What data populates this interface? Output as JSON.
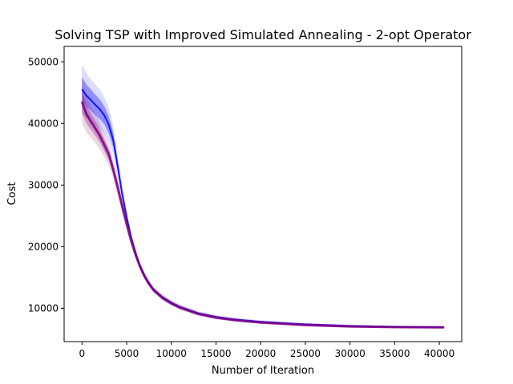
{
  "chart_data": {
    "type": "line",
    "title": "Solving TSP with Improved Simulated Annealing - 2-opt Operator",
    "xlabel": "Number of Iteration",
    "ylabel": "Cost",
    "xlim": [
      -2000,
      42500
    ],
    "ylim": [
      4600,
      52500
    ],
    "xticks": [
      0,
      5000,
      10000,
      15000,
      20000,
      25000,
      30000,
      35000,
      40000
    ],
    "yticks": [
      10000,
      20000,
      30000,
      40000,
      50000
    ],
    "grid": false,
    "legend": "none",
    "series": [
      {
        "color": "#0000ff",
        "spread_color": "#3b3bff",
        "x": [
          0,
          500,
          1000,
          1500,
          2000,
          2500,
          3000,
          3500,
          4000,
          4500,
          5000,
          5500,
          6000,
          6500,
          7000,
          7500,
          8000,
          9000,
          10000,
          11000,
          12000,
          13000,
          14000,
          15000,
          17000,
          20000,
          25000,
          30000,
          35000,
          40500
        ],
        "values": [
          45500,
          44500,
          43800,
          43000,
          42300,
          41300,
          39800,
          37300,
          33000,
          28600,
          24800,
          21500,
          19000,
          16800,
          15300,
          14000,
          13000,
          11800,
          10900,
          10200,
          9700,
          9200,
          8900,
          8600,
          8200,
          7800,
          7400,
          7150,
          7000,
          6950
        ],
        "spread": [
          4000,
          3600,
          3400,
          3300,
          3200,
          3000,
          2800,
          2300,
          1800,
          1300,
          1000,
          800,
          700,
          600,
          550,
          500,
          480,
          450,
          420,
          400,
          380,
          360,
          350,
          330,
          300,
          260,
          220,
          200,
          190,
          180
        ]
      },
      {
        "color": "#800080",
        "spread_color": "#a03080",
        "x": [
          0,
          500,
          1000,
          1500,
          2000,
          2500,
          3000,
          3500,
          4000,
          4500,
          5000,
          5500,
          6000,
          6500,
          7000,
          7500,
          8000,
          9000,
          10000,
          11000,
          12000,
          13000,
          14000,
          15000,
          17000,
          20000,
          25000,
          30000,
          35000,
          40500
        ],
        "values": [
          43500,
          41500,
          40300,
          39200,
          38000,
          36500,
          35000,
          32500,
          29600,
          26600,
          23700,
          21000,
          18700,
          16800,
          15200,
          14000,
          13000,
          11700,
          10800,
          10100,
          9600,
          9100,
          8800,
          8500,
          8100,
          7700,
          7300,
          7050,
          6950,
          6900
        ],
        "spread": [
          3500,
          3000,
          2600,
          2400,
          2200,
          2000,
          1800,
          1500,
          1300,
          1100,
          900,
          750,
          650,
          550,
          500,
          450,
          430,
          400,
          380,
          360,
          340,
          320,
          300,
          280,
          260,
          230,
          200,
          180,
          170,
          160
        ]
      }
    ]
  }
}
